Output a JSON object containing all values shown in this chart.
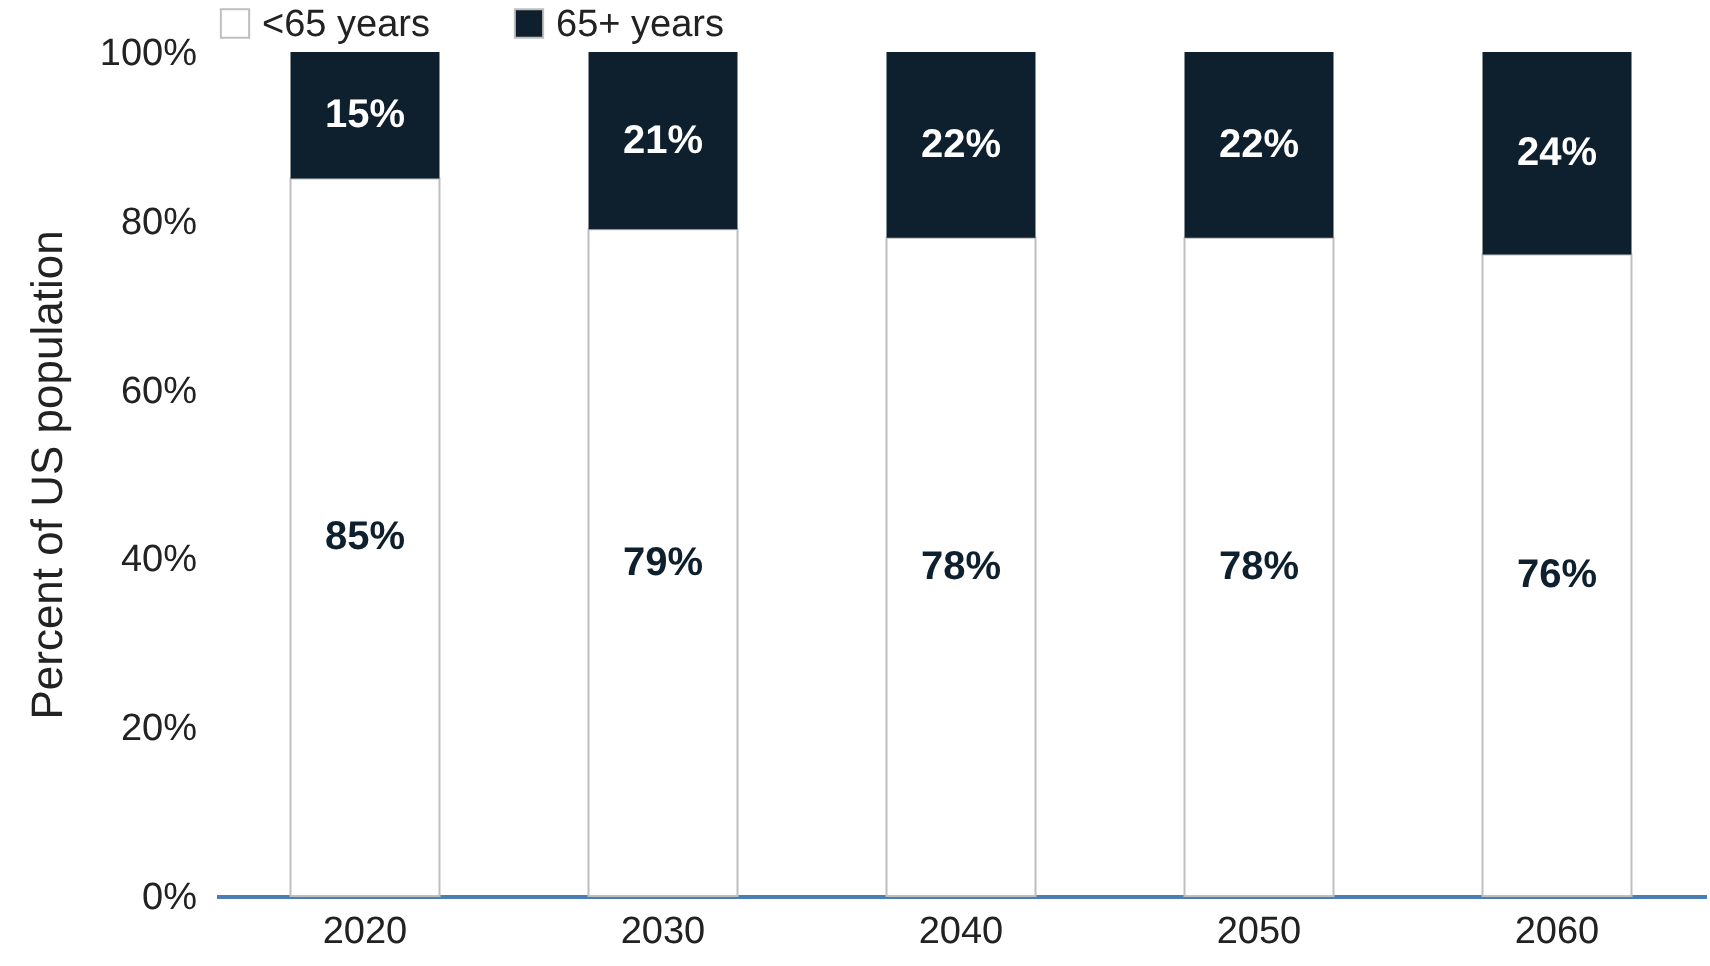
{
  "chart_data": {
    "type": "bar",
    "stacked": true,
    "ylabel": "Percent of US population",
    "categories": [
      "2020",
      "2030",
      "2040",
      "2050",
      "2060"
    ],
    "series": [
      {
        "name": "<65 years",
        "color": "#ffffff",
        "values": [
          85,
          79,
          78,
          78,
          76
        ],
        "value_labels": [
          "85%",
          "79%",
          "78%",
          "78%",
          "76%"
        ]
      },
      {
        "name": "65+ years",
        "color": "#0e1f2e",
        "values": [
          15,
          21,
          22,
          22,
          24
        ],
        "value_labels": [
          "15%",
          "21%",
          "22%",
          "22%",
          "24%"
        ]
      }
    ],
    "ylim": [
      0,
      100
    ],
    "yticks": [
      {
        "value": 0,
        "label": "0%"
      },
      {
        "value": 20,
        "label": "20%"
      },
      {
        "value": 40,
        "label": "40%"
      },
      {
        "value": 60,
        "label": "60%"
      },
      {
        "value": 80,
        "label": "80%"
      },
      {
        "value": 100,
        "label": "100%"
      }
    ],
    "legend": "top",
    "grid": false
  }
}
